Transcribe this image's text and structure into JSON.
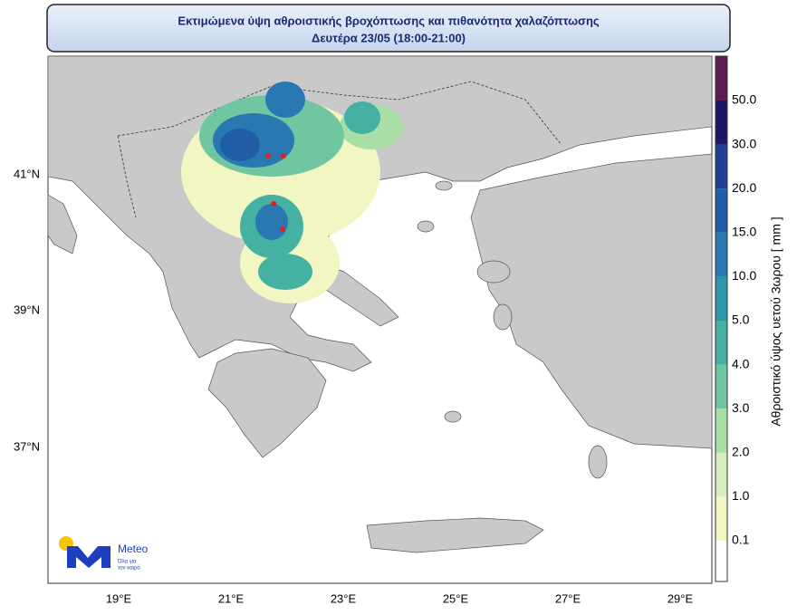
{
  "header": {
    "title": "Εκτιμώμενα ύψη αθροιστικής βροχόπτωσης και πιθανότητα χαλαζόπτωσης",
    "subtitle": "Δευτέρα 23/05 (18:00-21:00)"
  },
  "map": {
    "lat_labels": [
      "41°N",
      "39°N",
      "37°N"
    ],
    "lon_labels": [
      "19°E",
      "21°E",
      "23°E",
      "25°E",
      "27°E",
      "29°E"
    ]
  },
  "colorbar": {
    "title": "Αθροιστικό ύψος υετού 3ωρου [ mm ]",
    "labels": [
      "0.1",
      "1.0",
      "2.0",
      "3.0",
      "4.0",
      "5.0",
      "10.0",
      "15.0",
      "20.0",
      "30.0",
      "50.0"
    ],
    "colors": [
      "#ffffff",
      "#f1f6c2",
      "#d5eec0",
      "#a9dfa7",
      "#6fc6a0",
      "#44b1a2",
      "#2c96aa",
      "#2a78b1",
      "#1f5da6",
      "#213f96",
      "#1b1766",
      "#5b1d52"
    ]
  },
  "logo": {
    "name": "Meteo",
    "tagline": [
      "Όλα για",
      "τον καιρό"
    ]
  }
}
